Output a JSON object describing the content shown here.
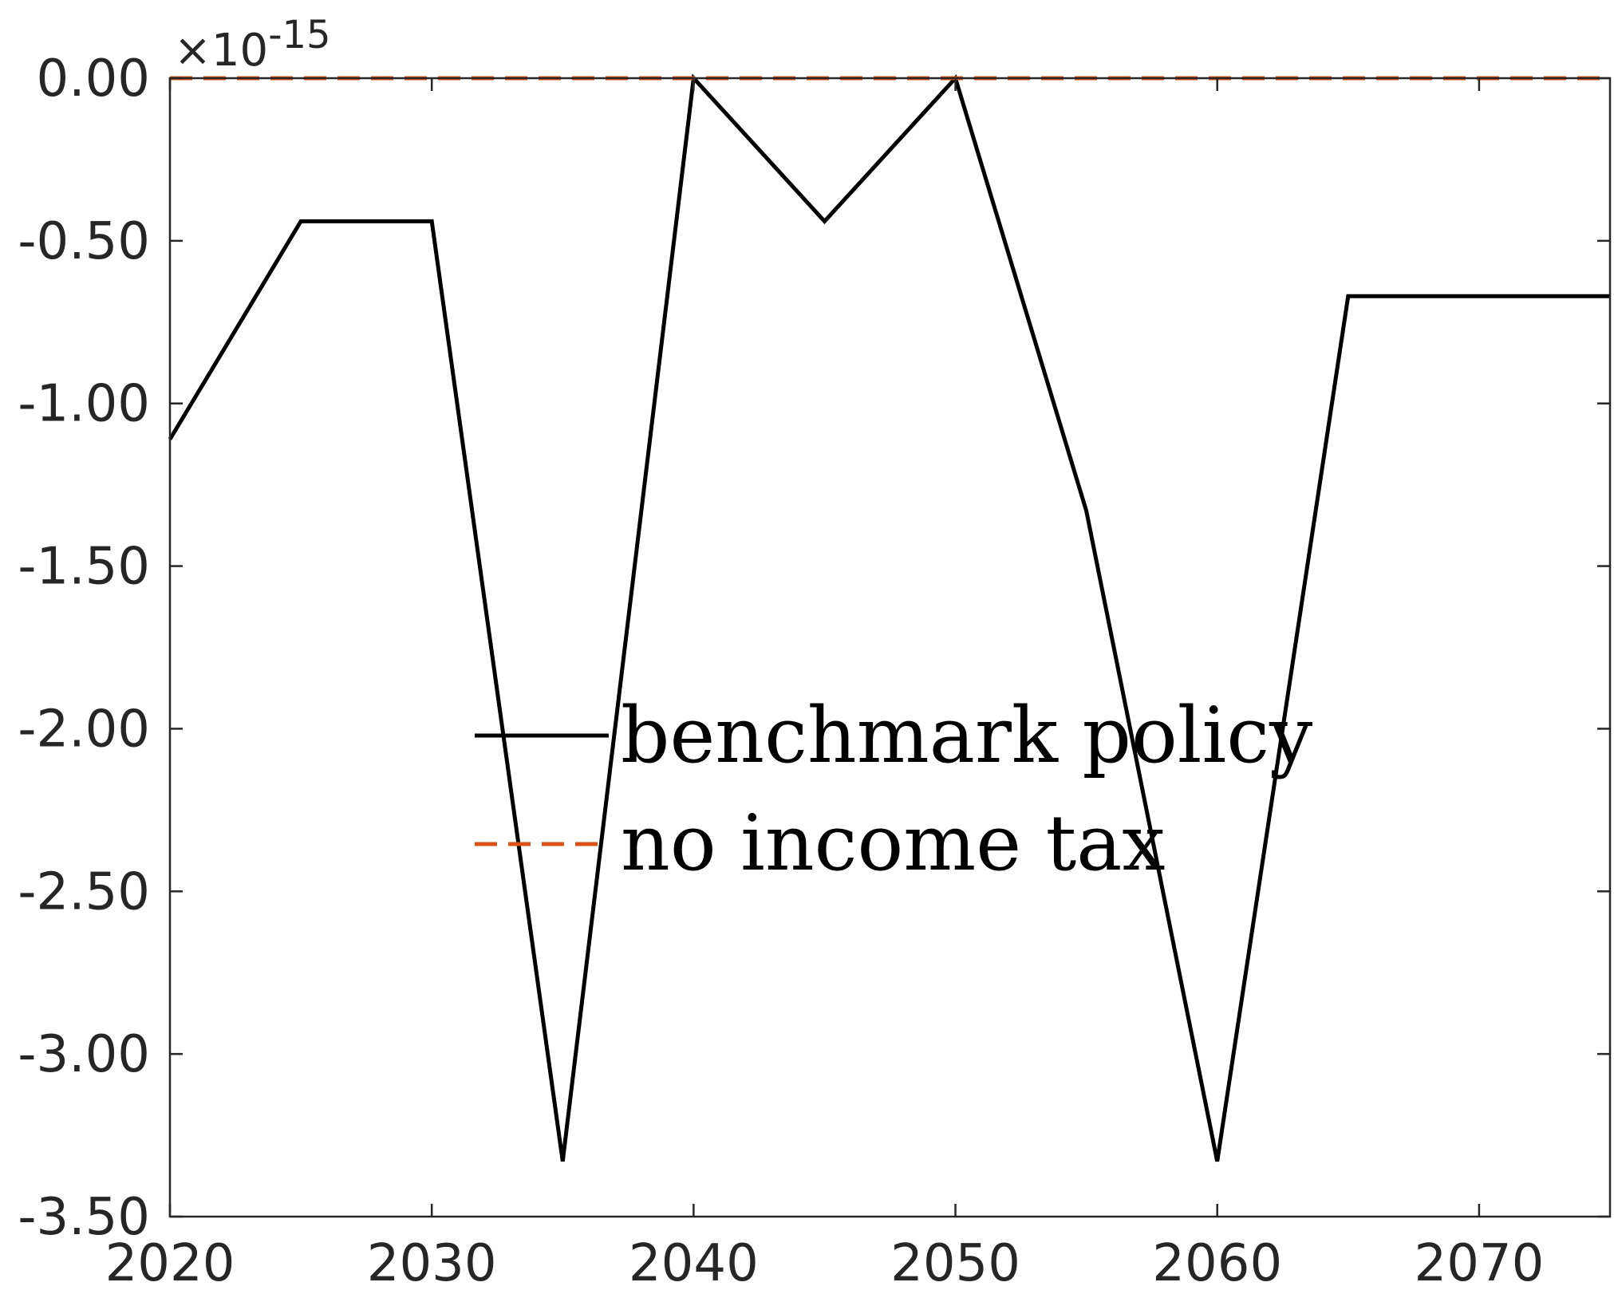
{
  "chart_data": {
    "type": "line",
    "title": "",
    "xlabel": "",
    "ylabel": "",
    "exponent_label": {
      "prefix": "×10",
      "power": "-15"
    },
    "xlim": [
      2020,
      2075
    ],
    "ylim": [
      -3.5,
      0
    ],
    "x_ticks": [
      2020,
      2030,
      2040,
      2050,
      2060,
      2070
    ],
    "x_tick_labels": [
      "2020",
      "2030",
      "2040",
      "2050",
      "2060",
      "2070"
    ],
    "y_ticks": [
      0,
      -0.5,
      -1,
      -1.5,
      -2,
      -2.5,
      -3,
      -3.5
    ],
    "y_tick_labels": [
      "0.00",
      "-0.50",
      "-1.00",
      "-1.50",
      "-2.00",
      "-2.50",
      "-3.00",
      "-3.50"
    ],
    "grid": false,
    "legend_position": "center",
    "series": [
      {
        "name": "benchmark policy",
        "color": "#000000",
        "style": "solid",
        "x": [
          2020,
          2025,
          2030,
          2035,
          2040,
          2045,
          2050,
          2055,
          2060,
          2065,
          2070,
          2075
        ],
        "y": [
          -1.11,
          -0.44,
          -0.44,
          -3.33,
          0.0,
          -0.44,
          0.0,
          -1.33,
          -3.33,
          -0.67,
          -0.67,
          -0.67
        ]
      },
      {
        "name": "no income tax",
        "color": "#D95319",
        "style": "dashed",
        "x": [
          2020,
          2025,
          2030,
          2035,
          2040,
          2045,
          2050,
          2055,
          2060,
          2065,
          2070,
          2075
        ],
        "y": [
          0,
          0,
          0,
          0,
          0,
          0,
          0,
          0,
          0,
          0,
          0,
          0
        ]
      }
    ]
  }
}
